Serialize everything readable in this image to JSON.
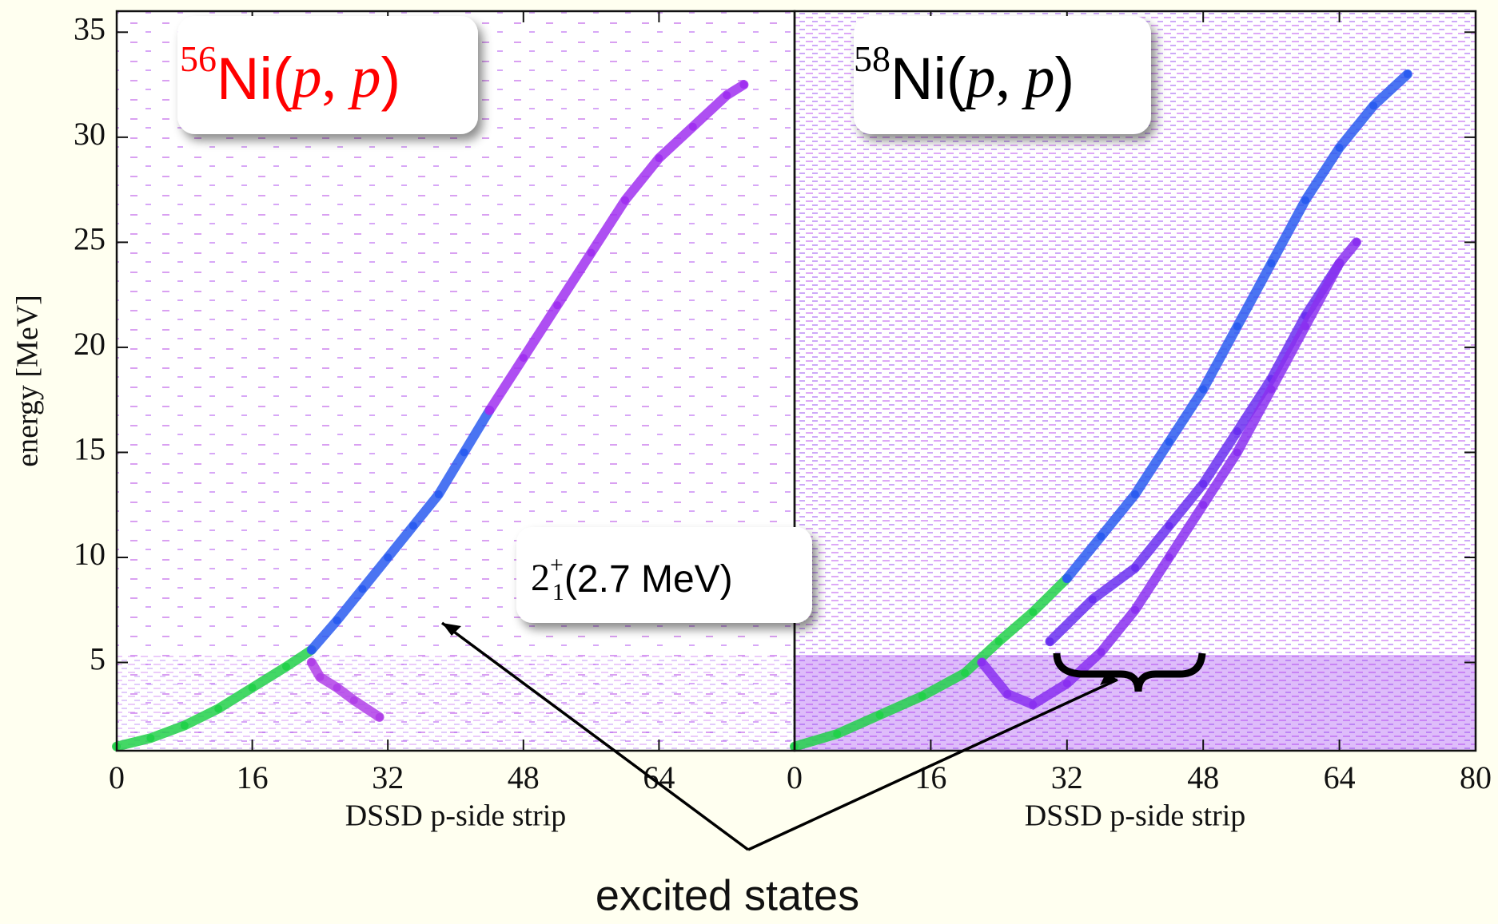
{
  "chart_data": [
    {
      "type": "density",
      "x_label": "DSSD p-side strip",
      "y_label": "energy [MeV]",
      "xlim": [
        0,
        80
      ],
      "xticks": [
        0,
        16,
        32,
        48,
        64
      ],
      "ylim": [
        0.8,
        36
      ],
      "yticks": [
        5,
        10,
        15,
        20,
        25,
        30,
        35
      ],
      "series": [
        {
          "color": "#22d14a",
          "x": [
            0,
            4,
            8,
            12,
            16,
            20,
            23
          ],
          "values": [
            1,
            1.4,
            2,
            2.8,
            3.8,
            4.8,
            5.6
          ]
        },
        {
          "color": "#2a5cf0",
          "x": [
            23,
            26,
            29,
            32,
            35,
            38,
            41,
            44
          ],
          "values": [
            5.6,
            7,
            8.5,
            10,
            11.5,
            13,
            15,
            17
          ]
        },
        {
          "color": "#a030f0",
          "x": [
            44,
            48,
            52,
            56,
            60,
            64,
            68,
            72,
            74
          ],
          "values": [
            17,
            19.5,
            22,
            24.5,
            27,
            29,
            30.5,
            32,
            32.5
          ]
        },
        {
          "color": "#b040e8",
          "x": [
            23,
            24,
            26,
            28,
            31
          ],
          "values": [
            5,
            4.3,
            3.8,
            3.2,
            2.4
          ]
        }
      ]
    },
    {
      "type": "density",
      "x_label": "DSSD p-side strip",
      "xlim": [
        0,
        80
      ],
      "xticks": [
        0,
        16,
        32,
        48,
        64,
        80
      ],
      "ylim": [
        0.8,
        36
      ],
      "series": [
        {
          "color": "#22d14a",
          "x": [
            0,
            5,
            10,
            15,
            20,
            24,
            28,
            32
          ],
          "values": [
            1,
            1.6,
            2.5,
            3.4,
            4.5,
            6,
            7.4,
            9
          ]
        },
        {
          "color": "#2a5cf0",
          "x": [
            32,
            36,
            40,
            44,
            48,
            52,
            56,
            60,
            64,
            68,
            72
          ],
          "values": [
            9,
            11,
            13,
            15.5,
            18,
            21,
            24,
            27,
            29.5,
            31.5,
            33
          ]
        },
        {
          "color": "#6a30f0",
          "x": [
            30,
            35,
            40,
            44,
            48,
            52,
            56,
            60,
            64
          ],
          "values": [
            6,
            8,
            9.5,
            11.5,
            13.5,
            16,
            18.5,
            21.5,
            24
          ]
        },
        {
          "color": "#8a30f0",
          "x": [
            22,
            25,
            28,
            32,
            36,
            40,
            44,
            48,
            52,
            56,
            60,
            64,
            66
          ],
          "values": [
            5,
            3.5,
            3,
            4,
            5.5,
            7.5,
            10,
            12.5,
            15,
            18,
            21,
            24,
            25
          ]
        }
      ]
    }
  ],
  "annotations": {
    "left_label": {
      "mass": "56",
      "text": "Ni(",
      "p1": "p",
      "comma": ", ",
      "p2": "p",
      "close": ")"
    },
    "right_label": {
      "mass": "58",
      "text": "Ni(",
      "p1": "p",
      "comma": ", ",
      "p2": "p",
      "close": ")"
    },
    "state": {
      "base": "2",
      "sub": "1",
      "sup": "+",
      "energy": "(2.7 MeV)"
    },
    "excited": "excited states"
  }
}
